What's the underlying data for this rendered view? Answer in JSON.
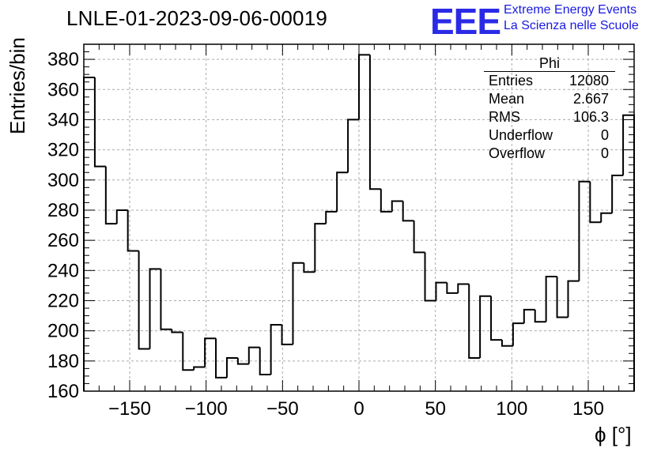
{
  "header": {
    "title": "LNLE-01-2023-09-06-00019",
    "logo_text": "EEE",
    "logo_line1": "Extreme Energy Events",
    "logo_line2": "La Scienza nelle Scuole"
  },
  "stats_box": {
    "name": "Phi",
    "rows": [
      {
        "label": "Entries",
        "value": "12080"
      },
      {
        "label": "Mean",
        "value": "2.667"
      },
      {
        "label": "RMS",
        "value": "106.3"
      },
      {
        "label": "Underflow",
        "value": "0"
      },
      {
        "label": "Overflow",
        "value": "0"
      }
    ]
  },
  "chart_data": {
    "type": "bar",
    "title": "LNLE-01-2023-09-06-00019",
    "xlabel": "ϕ [°]",
    "ylabel": "Entries/bin",
    "xlim": [
      -180,
      180
    ],
    "ylim": [
      160,
      390
    ],
    "bin_width": 7.2,
    "bin_edges_start": -180,
    "values": [
      368,
      309,
      271,
      280,
      253,
      188,
      241,
      201,
      199,
      174,
      176,
      195,
      169,
      182,
      178,
      189,
      171,
      204,
      191,
      245,
      239,
      271,
      279,
      305,
      340,
      383,
      294,
      279,
      286,
      273,
      252,
      220,
      232,
      225,
      231,
      182,
      223,
      194,
      190,
      205,
      214,
      206,
      236,
      209,
      233,
      299,
      272,
      278,
      303,
      343
    ],
    "xticks": [
      -150,
      -100,
      -50,
      0,
      50,
      100,
      150
    ],
    "yticks": [
      160,
      180,
      200,
      220,
      240,
      260,
      280,
      300,
      320,
      340,
      360,
      380
    ],
    "grid": true,
    "style": "step-outline",
    "line_color": "#000000",
    "grid_color": "#aaaaaa"
  }
}
